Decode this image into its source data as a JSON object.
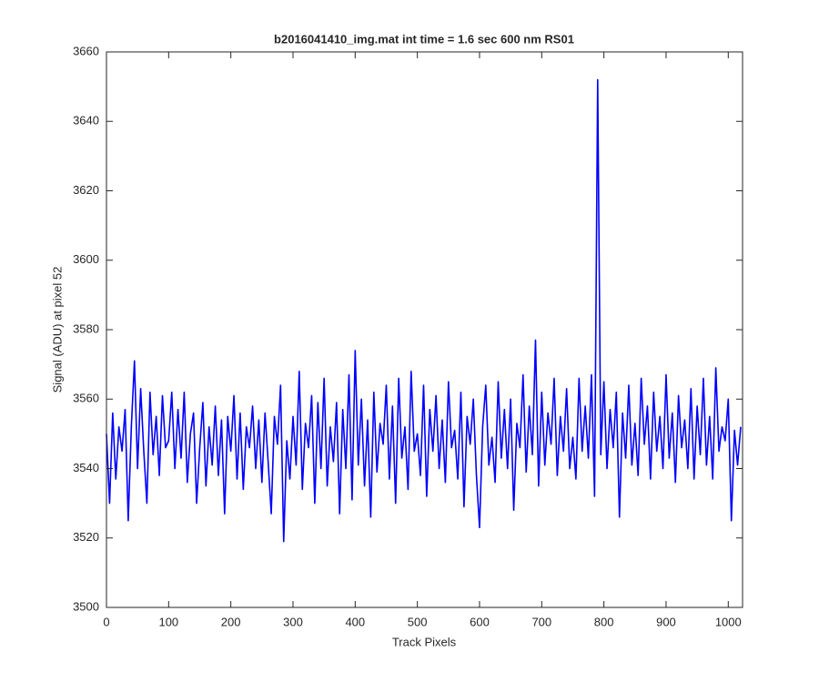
{
  "chart_data": {
    "type": "line",
    "title": "b2016041410_img.mat int time = 1.6 sec  600 nm RS01",
    "xlabel": "Track Pixels",
    "ylabel": "Signal (ADU) at pixel 52",
    "color": "#0000ff",
    "xlim": [
      0,
      1023
    ],
    "xticks": [
      0,
      100,
      200,
      300,
      400,
      500,
      600,
      700,
      800,
      900,
      1000
    ],
    "ylim": [
      3500,
      3660
    ],
    "yticks": [
      3500,
      3520,
      3540,
      3560,
      3580,
      3600,
      3620,
      3640,
      3660
    ],
    "x": [
      0,
      5,
      10,
      15,
      20,
      25,
      30,
      35,
      40,
      45,
      50,
      55,
      60,
      65,
      70,
      75,
      80,
      85,
      90,
      95,
      100,
      105,
      110,
      115,
      120,
      125,
      130,
      135,
      140,
      145,
      150,
      155,
      160,
      165,
      170,
      175,
      180,
      185,
      190,
      195,
      200,
      205,
      210,
      215,
      220,
      225,
      230,
      235,
      240,
      245,
      250,
      255,
      260,
      265,
      270,
      275,
      280,
      285,
      290,
      295,
      300,
      305,
      310,
      315,
      320,
      325,
      330,
      335,
      340,
      345,
      350,
      355,
      360,
      365,
      370,
      375,
      380,
      385,
      390,
      395,
      400,
      405,
      410,
      415,
      420,
      425,
      430,
      435,
      440,
      445,
      450,
      455,
      460,
      465,
      470,
      475,
      480,
      485,
      490,
      495,
      500,
      505,
      510,
      515,
      520,
      525,
      530,
      535,
      540,
      545,
      550,
      555,
      560,
      565,
      570,
      575,
      580,
      585,
      590,
      595,
      600,
      605,
      610,
      615,
      620,
      625,
      630,
      635,
      640,
      645,
      650,
      655,
      660,
      665,
      670,
      675,
      680,
      685,
      690,
      695,
      700,
      705,
      710,
      715,
      720,
      725,
      730,
      735,
      740,
      745,
      750,
      755,
      760,
      765,
      770,
      775,
      780,
      785,
      790,
      795,
      800,
      805,
      810,
      815,
      820,
      825,
      830,
      835,
      840,
      845,
      850,
      855,
      860,
      865,
      870,
      875,
      880,
      885,
      890,
      895,
      900,
      905,
      910,
      915,
      920,
      925,
      930,
      935,
      940,
      945,
      950,
      955,
      960,
      965,
      970,
      975,
      980,
      985,
      990,
      995,
      1000,
      1005,
      1010,
      1015,
      1020
    ],
    "values": [
      3550,
      3530,
      3556,
      3537,
      3552,
      3545,
      3557,
      3525,
      3552,
      3571,
      3540,
      3563,
      3545,
      3530,
      3562,
      3544,
      3555,
      3538,
      3561,
      3546,
      3548,
      3562,
      3540,
      3557,
      3543,
      3562,
      3536,
      3550,
      3556,
      3530,
      3546,
      3559,
      3535,
      3552,
      3541,
      3558,
      3538,
      3554,
      3527,
      3555,
      3545,
      3561,
      3537,
      3556,
      3534,
      3552,
      3546,
      3558,
      3540,
      3554,
      3536,
      3556,
      3542,
      3527,
      3555,
      3547,
      3564,
      3519,
      3548,
      3537,
      3555,
      3541,
      3568,
      3534,
      3553,
      3546,
      3561,
      3530,
      3559,
      3540,
      3566,
      3535,
      3552,
      3542,
      3559,
      3527,
      3557,
      3540,
      3567,
      3531,
      3574,
      3541,
      3560,
      3535,
      3554,
      3526,
      3562,
      3539,
      3553,
      3547,
      3564,
      3537,
      3558,
      3530,
      3566,
      3543,
      3552,
      3534,
      3568,
      3545,
      3550,
      3538,
      3564,
      3532,
      3557,
      3545,
      3561,
      3540,
      3554,
      3536,
      3565,
      3546,
      3551,
      3537,
      3562,
      3529,
      3555,
      3547,
      3560,
      3538,
      3523,
      3552,
      3564,
      3541,
      3549,
      3536,
      3565,
      3543,
      3557,
      3540,
      3560,
      3528,
      3553,
      3546,
      3567,
      3539,
      3558,
      3544,
      3577,
      3535,
      3562,
      3541,
      3556,
      3547,
      3566,
      3538,
      3555,
      3545,
      3563,
      3540,
      3549,
      3537,
      3566,
      3545,
      3558,
      3543,
      3567,
      3532,
      3652,
      3544,
      3565,
      3540,
      3557,
      3546,
      3562,
      3526,
      3556,
      3543,
      3564,
      3541,
      3553,
      3538,
      3566,
      3547,
      3558,
      3537,
      3562,
      3545,
      3555,
      3540,
      3567,
      3543,
      3556,
      3536,
      3561,
      3546,
      3554,
      3540,
      3563,
      3537,
      3558,
      3544,
      3566,
      3541,
      3555,
      3537,
      3569,
      3545,
      3552,
      3548,
      3560,
      3525,
      3551,
      3541,
      3552
    ]
  }
}
